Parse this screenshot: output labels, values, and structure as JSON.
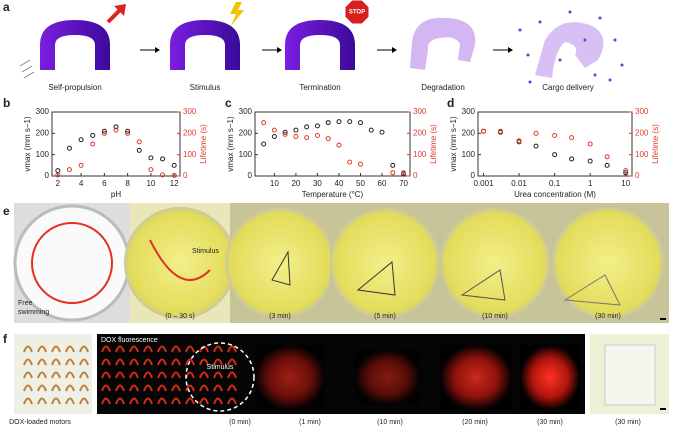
{
  "panel_labels": [
    "a",
    "b",
    "c",
    "d",
    "e",
    "f"
  ],
  "panel_a": {
    "steps": [
      "Self-propulsion",
      "Stimulus",
      "Termination",
      "Degradation",
      "Cargo delivery"
    ],
    "stop_sign": "STOP"
  },
  "chart_data": [
    {
      "type": "scatter",
      "xlabel": "pH",
      "ylabel": "vmax (mm s−1)",
      "y2label": "Lifetime (s)",
      "x": [
        2,
        3,
        4,
        5,
        6,
        7,
        8,
        9,
        10,
        11,
        12
      ],
      "xlim": [
        1.5,
        12.5
      ],
      "xticks": [
        2,
        4,
        6,
        8,
        10,
        12
      ],
      "ylim": [
        0,
        300
      ],
      "yticks": [
        0,
        100,
        200,
        300
      ],
      "y2lim": [
        0,
        300
      ],
      "y2ticks": [
        0,
        100,
        200,
        300
      ],
      "series": [
        {
          "color": "#222222",
          "values": [
            25,
            130,
            170,
            190,
            210,
            230,
            210,
            120,
            85,
            80,
            50
          ]
        },
        {
          "color": "#e0392b",
          "axis": "y2",
          "values": [
            5,
            30,
            50,
            150,
            200,
            215,
            200,
            160,
            30,
            5,
            3
          ]
        }
      ]
    },
    {
      "type": "scatter",
      "xlabel": "Temperature (°C)",
      "ylabel": "vmax (mm s−1)",
      "y2label": "Lifetime (s)",
      "x": [
        5,
        10,
        15,
        20,
        25,
        30,
        35,
        40,
        45,
        50,
        55,
        60,
        65,
        70
      ],
      "xlim": [
        1,
        73
      ],
      "xticks": [
        10,
        20,
        30,
        40,
        50,
        60,
        70
      ],
      "ylim": [
        0,
        300
      ],
      "yticks": [
        0,
        100,
        200,
        300
      ],
      "y2lim": [
        0,
        300
      ],
      "y2ticks": [
        0,
        100,
        200,
        300
      ],
      "series": [
        {
          "color": "#222222",
          "values": [
            150,
            185,
            205,
            215,
            230,
            235,
            250,
            255,
            255,
            250,
            215,
            205,
            50,
            10
          ]
        },
        {
          "color": "#e0392b",
          "axis": "y2",
          "values": [
            250,
            215,
            195,
            185,
            180,
            190,
            175,
            145,
            65,
            55,
            null,
            null,
            15,
            15
          ]
        }
      ]
    },
    {
      "type": "scatter",
      "xscale": "log",
      "xlabel": "Urea concentration (M)",
      "ylabel": "vmax (mm s−1)",
      "y2label": "Lifetime (s)",
      "x": [
        0.001,
        0.003,
        0.01,
        0.03,
        0.1,
        0.3,
        1,
        3,
        10
      ],
      "xlim": [
        0.0007,
        15
      ],
      "xticks": [
        0.001,
        0.01,
        0.1,
        1,
        10
      ],
      "ylim": [
        0,
        300
      ],
      "yticks": [
        0,
        100,
        200,
        300
      ],
      "y2lim": [
        0,
        300
      ],
      "y2ticks": [
        0,
        100,
        200,
        300
      ],
      "series": [
        {
          "color": "#222222",
          "values": [
            210,
            205,
            160,
            140,
            100,
            80,
            70,
            50,
            15
          ]
        },
        {
          "color": "#e0392b",
          "axis": "y2",
          "values": [
            210,
            210,
            165,
            200,
            190,
            180,
            150,
            90,
            25
          ]
        }
      ]
    }
  ],
  "panel_e": {
    "free": [
      "Free",
      "swimming"
    ],
    "stimulus": "Stimulus",
    "times": [
      "(0 – 30 s)",
      "(3 min)",
      "(5 min)",
      "(10 min)",
      "(30 min)"
    ]
  },
  "panel_f": {
    "motors": "DOX-loaded motors",
    "fluorescence": "DOX fluorescence",
    "stimulus": "Stimulus",
    "times": [
      "(0 min)",
      "(1 min)",
      "(10 min)",
      "(20 min)",
      "(30 min)",
      "(30 min)"
    ]
  }
}
